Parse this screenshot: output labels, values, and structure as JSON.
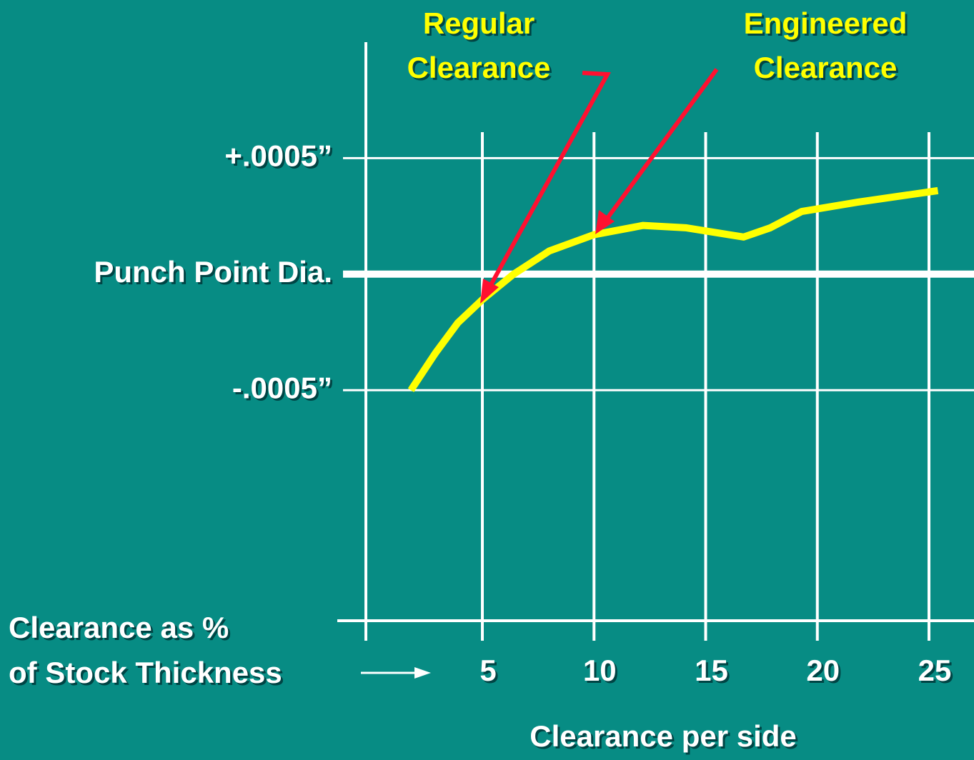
{
  "chart_data": {
    "type": "line",
    "annotations": [
      [
        "Regular",
        "Clearance"
      ],
      [
        "Engineered",
        "Clearance"
      ]
    ],
    "x_note": [
      "Clearance as %",
      "of Stock Thickness"
    ],
    "x_label": "Clearance per side",
    "x": [
      1.8,
      2.9,
      3.9,
      5,
      6.4,
      8,
      10,
      12.2,
      14.1,
      16.7,
      17.9,
      19.3,
      21.8,
      25.4
    ],
    "series": [
      {
        "color": "#ffff00",
        "values": [
          -0.0005,
          -0.00034,
          -0.00021,
          -0.00011,
          0,
          0.0001,
          0.00017,
          0.00021,
          0.0002,
          0.00016,
          0.0002,
          0.00027,
          0.00031,
          0.00036
        ]
      }
    ],
    "xlim": [
      0,
      27
    ],
    "xticks": [
      5,
      10,
      15,
      20,
      25
    ],
    "ylim": [
      -0.0015,
      0.001
    ],
    "yticks": [
      {
        "value": 0.0005,
        "label": "+.0005”"
      },
      {
        "value": 0,
        "label": "Punch Point Dia."
      },
      {
        "value": -0.0005,
        "label": "-.0005”"
      }
    ],
    "grid": true
  }
}
